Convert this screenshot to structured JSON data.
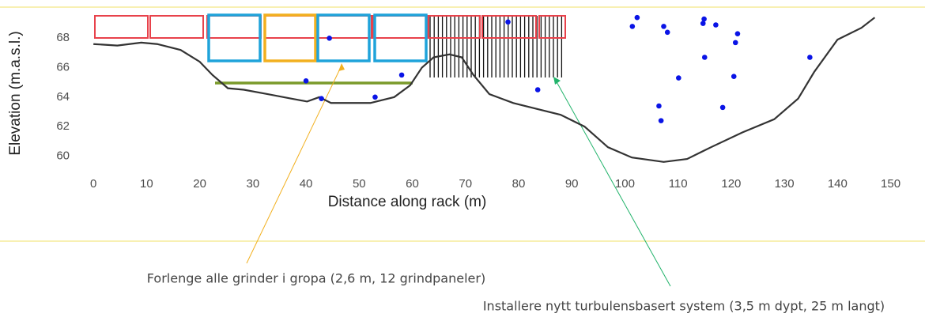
{
  "chart_data": {
    "type": "line",
    "xlabel": "Distance along rack (m)",
    "ylabel": "Elevation (m.a.s.l.)",
    "xlim": [
      -3,
      152
    ],
    "ylim": [
      59,
      70
    ],
    "xticks": [
      0,
      10,
      20,
      30,
      40,
      50,
      60,
      70,
      80,
      90,
      100,
      110,
      120,
      130,
      140,
      150
    ],
    "yticks": [
      60,
      62,
      64,
      66,
      68
    ],
    "grid": false,
    "color": "#333333",
    "x": [
      0,
      4.5,
      9,
      12,
      16.4,
      20,
      22.4,
      25.3,
      28.3,
      32.8,
      37.2,
      40.2,
      42.5,
      44.7,
      47.7,
      52.1,
      56.6,
      59.6,
      61.8,
      64,
      67,
      69.3,
      71.5,
      74.5,
      79,
      83.4,
      87.9,
      92.4,
      96.8,
      101.3,
      107.3,
      111.7,
      116.2,
      122.1,
      128.1,
      132.6,
      135.6,
      140,
      144.5,
      147
    ],
    "values": [
      67.6,
      67.5,
      67.7,
      67.6,
      67.2,
      66.4,
      65.5,
      64.6,
      64.5,
      64.2,
      63.9,
      63.7,
      64.0,
      63.6,
      63.6,
      63.6,
      64.0,
      64.8,
      66.0,
      66.7,
      66.9,
      66.7,
      65.5,
      64.2,
      63.6,
      63.2,
      62.8,
      62.0,
      60.6,
      59.9,
      59.6,
      59.8,
      60.6,
      61.6,
      62.5,
      63.9,
      65.7,
      67.9,
      68.7,
      69.4
    ],
    "points": {
      "color": "#0a14e6",
      "x": [
        40,
        44.4,
        42.9,
        53,
        58,
        78,
        83.6,
        101.4,
        102.3,
        107.3,
        108,
        110.1,
        106.4,
        106.8,
        114.9,
        114.7,
        117.1,
        121.2,
        120.8,
        115,
        120.5,
        118.4,
        134.8
      ],
      "y": [
        65.1,
        68.0,
        63.9,
        64.0,
        65.5,
        69.1,
        64.5,
        68.8,
        69.4,
        68.8,
        68.4,
        65.3,
        63.4,
        62.4,
        69.3,
        69.0,
        68.9,
        68.3,
        67.7,
        66.7,
        65.4,
        63.3,
        66.7
      ]
    },
    "annotations": [
      "Forlenge alle grinder i gropa (2,6 m, 12 grindpaneler)",
      "Installere nytt turbulensbasert system (3,5 m dypt, 25 m langt)"
    ]
  }
}
